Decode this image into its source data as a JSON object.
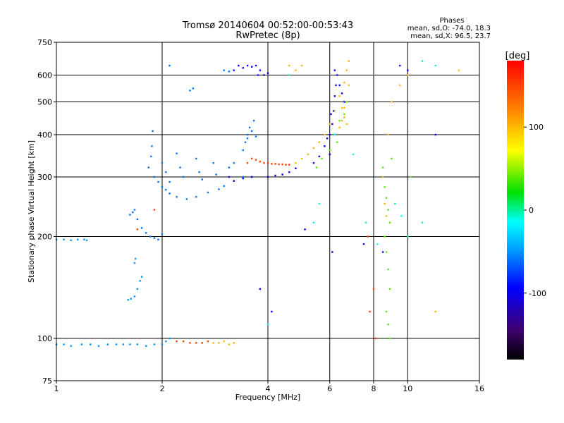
{
  "chart_data": {
    "type": "scatter",
    "title": "Tromsø 20140604 00:52:00-00:53:43",
    "subtitle": "RwPretec (8p)",
    "xlabel": "Frequency [MHz]",
    "ylabel": "Stationary phase Virtual Height [km]",
    "x_scale": "log",
    "y_scale": "log",
    "xlim": [
      1,
      16
    ],
    "ylim": [
      75,
      750
    ],
    "x_ticks": [
      1,
      2,
      4,
      6,
      8,
      10,
      16
    ],
    "y_ticks": [
      75,
      100,
      200,
      300,
      400,
      500,
      600,
      750
    ],
    "grid": true,
    "stats": {
      "title": "Phases",
      "line_o": "mean, sd,O: -74.0, 18.3",
      "line_x": "mean, sd,X:  96.5, 23.7"
    },
    "colorbar": {
      "label": "[deg]",
      "range": [
        -180,
        180
      ],
      "ticks": [
        100,
        0,
        -100
      ],
      "colormap": "rainbow"
    },
    "series": [
      {
        "color_value": -50,
        "points": [
          [
            1.0,
            96
          ],
          [
            1.05,
            96
          ],
          [
            1.1,
            95
          ],
          [
            1.18,
            96
          ],
          [
            1.25,
            96
          ],
          [
            1.32,
            95
          ],
          [
            1.4,
            96
          ],
          [
            1.48,
            96
          ],
          [
            1.55,
            96
          ],
          [
            1.62,
            96
          ],
          [
            1.7,
            96
          ],
          [
            1.8,
            95
          ],
          [
            1.9,
            96
          ],
          [
            2.0,
            96
          ],
          [
            2.05,
            98
          ],
          [
            2.1,
            100
          ],
          [
            1.0,
            196
          ],
          [
            1.05,
            196
          ],
          [
            1.1,
            195
          ],
          [
            1.15,
            196
          ],
          [
            1.2,
            196
          ],
          [
            1.22,
            195
          ],
          [
            1.6,
            130
          ],
          [
            1.63,
            131
          ],
          [
            1.67,
            133
          ],
          [
            1.7,
            140
          ],
          [
            1.73,
            148
          ],
          [
            1.75,
            152
          ],
          [
            1.67,
            167
          ],
          [
            1.68,
            172
          ]
        ]
      },
      {
        "color_value": -60,
        "points": [
          [
            1.62,
            232
          ],
          [
            1.65,
            236
          ],
          [
            1.67,
            240
          ],
          [
            1.7,
            225
          ],
          [
            1.75,
            212
          ],
          [
            1.8,
            205
          ],
          [
            1.85,
            200
          ],
          [
            1.9,
            198
          ],
          [
            1.95,
            196
          ],
          [
            2.0,
            203
          ],
          [
            1.83,
            320
          ],
          [
            1.86,
            345
          ],
          [
            1.87,
            370
          ],
          [
            1.88,
            410
          ],
          [
            1.9,
            300
          ],
          [
            1.95,
            290
          ],
          [
            2.0,
            280
          ],
          [
            2.05,
            275
          ],
          [
            2.1,
            268
          ],
          [
            2.2,
            262
          ],
          [
            2.35,
            258
          ],
          [
            2.5,
            262
          ],
          [
            2.7,
            270
          ],
          [
            2.9,
            276
          ],
          [
            3.0,
            282
          ],
          [
            3.2,
            292
          ],
          [
            3.4,
            300
          ],
          [
            3.6,
            300
          ],
          [
            2.0,
            330
          ],
          [
            2.05,
            310
          ],
          [
            2.1,
            290
          ],
          [
            2.2,
            352
          ],
          [
            2.25,
            320
          ],
          [
            2.3,
            300
          ],
          [
            2.5,
            340
          ],
          [
            2.55,
            310
          ],
          [
            2.6,
            295
          ],
          [
            2.8,
            330
          ],
          [
            2.85,
            305
          ],
          [
            3.1,
            320
          ],
          [
            3.2,
            330
          ],
          [
            3.4,
            360
          ],
          [
            3.5,
            390
          ],
          [
            3.6,
            410
          ],
          [
            3.65,
            440
          ],
          [
            3.5,
            400
          ],
          [
            3.45,
            380
          ],
          [
            3.55,
            420
          ],
          [
            3.7,
            395
          ],
          [
            2.4,
            540
          ],
          [
            2.45,
            548
          ],
          [
            2.1,
            640
          ],
          [
            3.0,
            620
          ],
          [
            3.1,
            615
          ]
        ]
      },
      {
        "color_value": -100,
        "points": [
          [
            3.2,
            620
          ],
          [
            3.3,
            640
          ],
          [
            3.4,
            630
          ],
          [
            3.5,
            640
          ],
          [
            3.6,
            635
          ],
          [
            3.7,
            640
          ],
          [
            3.8,
            620
          ],
          [
            3.9,
            600
          ],
          [
            4.0,
            608
          ],
          [
            3.75,
            600
          ],
          [
            4.0,
            300
          ],
          [
            4.2,
            303
          ],
          [
            4.4,
            305
          ],
          [
            4.6,
            310
          ],
          [
            4.8,
            318
          ],
          [
            3.6,
            300
          ],
          [
            3.4,
            297
          ],
          [
            3.2,
            292
          ],
          [
            3.1,
            300
          ],
          [
            5.4,
            330
          ],
          [
            5.6,
            345
          ],
          [
            5.8,
            370
          ],
          [
            6.0,
            400
          ],
          [
            6.1,
            430
          ],
          [
            6.15,
            470
          ],
          [
            6.2,
            520
          ],
          [
            6.25,
            560
          ],
          [
            6.3,
            600
          ],
          [
            6.0,
            350
          ],
          [
            5.9,
            390
          ],
          [
            6.05,
            460
          ],
          [
            6.2,
            620
          ],
          [
            6.4,
            560
          ],
          [
            6.5,
            530
          ],
          [
            6.6,
            500
          ],
          [
            5.1,
            210
          ],
          [
            6.1,
            180
          ],
          [
            7.5,
            190
          ],
          [
            8.5,
            180
          ],
          [
            10.0,
            620
          ],
          [
            9.5,
            640
          ],
          [
            12.0,
            400
          ],
          [
            4.1,
            120
          ],
          [
            3.8,
            140
          ]
        ]
      },
      {
        "color_value": 150,
        "points": [
          [
            2.2,
            98
          ],
          [
            2.3,
            98
          ],
          [
            2.4,
            97
          ],
          [
            2.5,
            97
          ],
          [
            2.6,
            97
          ],
          [
            2.7,
            98
          ],
          [
            3.6,
            340
          ],
          [
            3.7,
            337
          ],
          [
            3.8,
            333
          ],
          [
            3.9,
            330
          ],
          [
            4.0,
            330
          ],
          [
            4.1,
            328
          ],
          [
            4.2,
            328
          ],
          [
            4.3,
            327
          ],
          [
            4.4,
            327
          ],
          [
            4.5,
            326
          ],
          [
            4.6,
            326
          ],
          [
            3.5,
            330
          ],
          [
            1.7,
            210
          ],
          [
            1.9,
            240
          ],
          [
            7.7,
            200
          ],
          [
            7.8,
            120
          ],
          [
            8.0,
            140
          ],
          [
            8.1,
            100
          ]
        ]
      },
      {
        "color_value": 100,
        "points": [
          [
            2.8,
            97
          ],
          [
            2.9,
            97
          ],
          [
            3.0,
            98
          ],
          [
            3.1,
            96
          ],
          [
            3.2,
            97
          ],
          [
            4.8,
            330
          ],
          [
            5.0,
            340
          ],
          [
            5.2,
            350
          ],
          [
            5.4,
            365
          ],
          [
            5.6,
            380
          ],
          [
            5.8,
            400
          ],
          [
            6.0,
            430
          ],
          [
            6.2,
            470
          ],
          [
            6.4,
            520
          ],
          [
            6.6,
            570
          ],
          [
            6.7,
            620
          ],
          [
            6.8,
            660
          ],
          [
            6.5,
            480
          ],
          [
            6.6,
            450
          ],
          [
            6.7,
            430
          ],
          [
            6.4,
            420
          ],
          [
            6.5,
            440
          ],
          [
            6.6,
            480
          ],
          [
            6.7,
            500
          ],
          [
            6.8,
            560
          ],
          [
            4.6,
            640
          ],
          [
            4.8,
            620
          ],
          [
            5.0,
            640
          ],
          [
            8.5,
            300
          ],
          [
            8.6,
            250
          ],
          [
            8.7,
            230
          ],
          [
            8.8,
            400
          ],
          [
            9.0,
            500
          ],
          [
            9.5,
            560
          ],
          [
            10.0,
            600
          ],
          [
            12.0,
            120
          ],
          [
            14.0,
            620
          ]
        ]
      },
      {
        "color_value": 40,
        "points": [
          [
            5.5,
            320
          ],
          [
            5.7,
            340
          ],
          [
            6.0,
            360
          ],
          [
            6.2,
            400
          ],
          [
            6.4,
            440
          ],
          [
            6.6,
            460
          ],
          [
            6.7,
            500
          ],
          [
            6.3,
            380
          ],
          [
            8.5,
            320
          ],
          [
            8.6,
            280
          ],
          [
            8.7,
            260
          ],
          [
            8.8,
            240
          ],
          [
            8.9,
            220
          ],
          [
            8.6,
            200
          ],
          [
            8.7,
            180
          ],
          [
            8.8,
            160
          ],
          [
            8.9,
            140
          ],
          [
            8.7,
            120
          ],
          [
            8.8,
            110
          ],
          [
            8.9,
            100
          ],
          [
            9.0,
            340
          ],
          [
            10.2,
            300
          ]
        ]
      },
      {
        "color_value": -10,
        "points": [
          [
            4.0,
            110
          ],
          [
            4.6,
            600
          ],
          [
            5.6,
            250
          ],
          [
            5.4,
            220
          ],
          [
            6.2,
            400
          ],
          [
            7.0,
            350
          ],
          [
            7.6,
            220
          ],
          [
            8.2,
            190
          ],
          [
            9.2,
            250
          ],
          [
            9.6,
            230
          ],
          [
            10.0,
            200
          ],
          [
            11.0,
            220
          ],
          [
            12.0,
            640
          ],
          [
            11.0,
            660
          ]
        ]
      }
    ]
  }
}
